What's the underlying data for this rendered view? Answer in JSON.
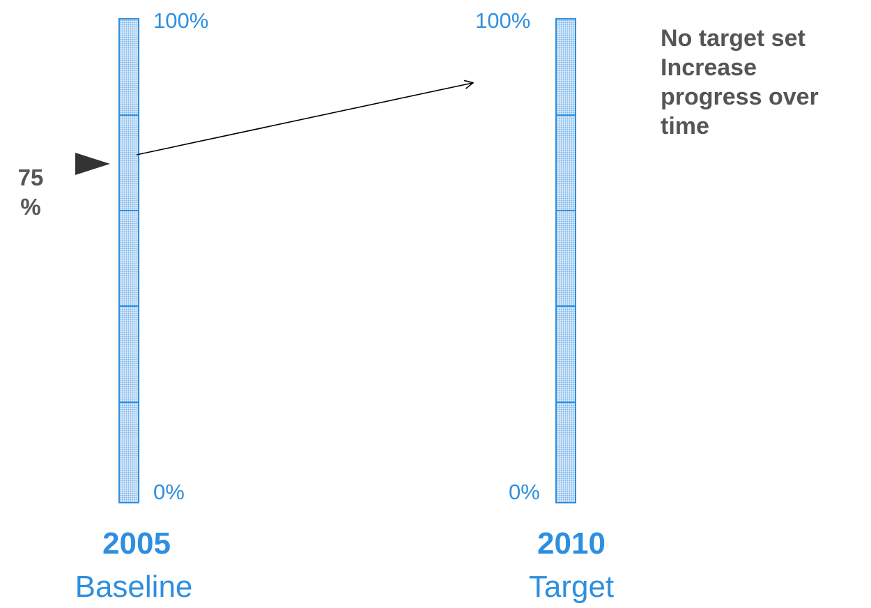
{
  "baseline": {
    "year": "2005",
    "label": "Baseline",
    "top_label": "100%",
    "bottom_label": "0%",
    "value_percent": 75,
    "value_text": [
      "75",
      "%"
    ]
  },
  "target": {
    "year": "2010",
    "label": "Target",
    "top_label": "100%",
    "bottom_label": "0%"
  },
  "note": {
    "lines": [
      "No target set",
      "Increase",
      "progress over",
      "time"
    ]
  },
  "colors": {
    "scale_blue": "#2e8fe0",
    "text_gray": "#555555",
    "marker_dark": "#333333"
  },
  "icons": {
    "marker": "triangle-pointer-icon",
    "arrow": "arrow-right-icon"
  }
}
